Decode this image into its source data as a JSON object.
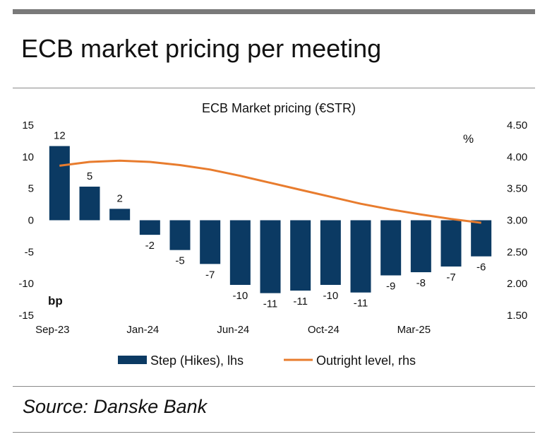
{
  "page": {
    "title": "ECB market pricing per meeting",
    "source": "Source: Danske Bank"
  },
  "chart_data": {
    "type": "bar",
    "title": "ECB Market pricing (€STR)",
    "left_unit": "bp",
    "right_unit": "%",
    "ylim_left": [
      -15,
      15
    ],
    "yticks_left": [
      "15",
      "10",
      "5",
      "0",
      "-5",
      "-10",
      "-15"
    ],
    "ylim_right": [
      1.5,
      4.5
    ],
    "yticks_right": [
      "4.50",
      "4.00",
      "3.50",
      "3.00",
      "2.50",
      "2.00",
      "1.50"
    ],
    "x_tick_labels": [
      {
        "label": "Sep-23",
        "index": 0
      },
      {
        "label": "Jan-24",
        "index": 3
      },
      {
        "label": "Jun-24",
        "index": 6
      },
      {
        "label": "Oct-24",
        "index": 9
      },
      {
        "label": "Mar-25",
        "index": 12
      }
    ],
    "series": [
      {
        "name": "Step (Hikes), lhs",
        "type": "bar",
        "axis": "left",
        "color": "#0b3a63",
        "values": [
          11.7,
          5.3,
          1.8,
          -2.3,
          -4.7,
          -6.9,
          -10.2,
          -11.5,
          -11.1,
          -10.2,
          -11.4,
          -8.7,
          -8.2,
          -7.3,
          -5.7
        ],
        "labels": [
          "12",
          "5",
          "2",
          "-2",
          "-5",
          "-7",
          "-10",
          "-11",
          "-11",
          "-10",
          "-11",
          "-9",
          "-8",
          "-7",
          "-6"
        ]
      },
      {
        "name": "Outright level, rhs",
        "type": "line",
        "axis": "right",
        "color": "#e87c2e",
        "values": [
          3.86,
          3.92,
          3.94,
          3.92,
          3.87,
          3.8,
          3.7,
          3.59,
          3.48,
          3.37,
          3.26,
          3.17,
          3.09,
          3.02,
          2.96
        ]
      }
    ]
  }
}
